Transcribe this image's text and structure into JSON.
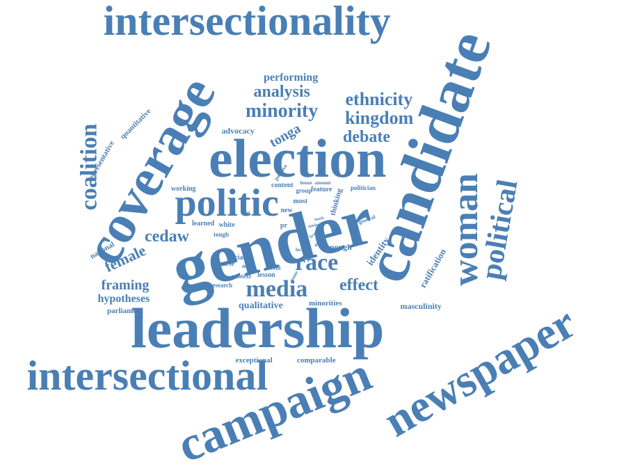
{
  "color": "#4a7fb5",
  "words": [
    {
      "id": "intersectionality",
      "text": "intersectionality"
    },
    {
      "id": "coverage",
      "text": "coverage"
    },
    {
      "id": "candidate",
      "text": "candidate"
    },
    {
      "id": "election",
      "text": "election"
    },
    {
      "id": "gender",
      "text": "gender"
    },
    {
      "id": "leadership",
      "text": "leadership"
    },
    {
      "id": "intersectional",
      "text": "intersectional"
    },
    {
      "id": "campaign",
      "text": "campaign"
    },
    {
      "id": "newspaper",
      "text": "newspaper"
    },
    {
      "id": "politic",
      "text": "politic"
    },
    {
      "id": "woman",
      "text": "woman"
    },
    {
      "id": "political",
      "text": "political"
    },
    {
      "id": "coalition",
      "text": "coalition"
    },
    {
      "id": "media",
      "text": "media"
    },
    {
      "id": "race",
      "text": "race"
    },
    {
      "id": "analysis",
      "text": "analysis"
    },
    {
      "id": "minority",
      "text": "minority"
    },
    {
      "id": "ethnicity",
      "text": "ethnicity"
    },
    {
      "id": "kingdom",
      "text": "kingdom"
    },
    {
      "id": "debate",
      "text": "debate"
    },
    {
      "id": "performing",
      "text": "performing"
    },
    {
      "id": "tonga",
      "text": "tonga"
    },
    {
      "id": "cedaw",
      "text": "cedaw"
    },
    {
      "id": "female",
      "text": "female"
    },
    {
      "id": "framing",
      "text": "framing"
    },
    {
      "id": "hypotheses",
      "text": "hypotheses"
    },
    {
      "id": "parliament",
      "text": "parliament"
    },
    {
      "id": "effect",
      "text": "effect"
    },
    {
      "id": "qualitative",
      "text": "qualitative"
    },
    {
      "id": "minorities",
      "text": "minorities"
    },
    {
      "id": "masculinity",
      "text": "masculinity"
    },
    {
      "id": "ratification",
      "text": "ratification"
    },
    {
      "id": "identity",
      "text": "identity"
    },
    {
      "id": "enough",
      "text": "enough"
    },
    {
      "id": "thinking",
      "text": "thinking"
    },
    {
      "id": "politician",
      "text": "politician"
    },
    {
      "id": "feature",
      "text": "feature"
    },
    {
      "id": "group",
      "text": "group"
    },
    {
      "id": "content",
      "text": "content"
    },
    {
      "id": "most",
      "text": "most"
    },
    {
      "id": "new",
      "text": "new"
    },
    {
      "id": "pr",
      "text": "pr"
    },
    {
      "id": "learned",
      "text": "learned"
    },
    {
      "id": "white",
      "text": "white"
    },
    {
      "id": "tough",
      "text": "tough"
    },
    {
      "id": "working",
      "text": "working"
    },
    {
      "id": "national",
      "text": "national"
    },
    {
      "id": "racial",
      "text": "racial"
    },
    {
      "id": "diverse",
      "text": "diverse"
    },
    {
      "id": "male",
      "text": "male"
    },
    {
      "id": "recent",
      "text": "recent"
    },
    {
      "id": "context",
      "text": "context"
    },
    {
      "id": "lesson",
      "text": "lesson"
    },
    {
      "id": "research",
      "text": "research"
    },
    {
      "id": "exceptional",
      "text": "exceptional"
    },
    {
      "id": "comparable",
      "text": "comparable"
    },
    {
      "id": "advocacy",
      "text": "advocacy"
    },
    {
      "id": "quantitative",
      "text": "quantitative"
    },
    {
      "id": "representative",
      "text": "representative"
    },
    {
      "id": "positive",
      "text": "positive"
    },
    {
      "id": "house",
      "text": "house"
    },
    {
      "id": "amount",
      "text": "amount"
    },
    {
      "id": "general",
      "text": "general"
    },
    {
      "id": "local",
      "text": "local"
    },
    {
      "id": "single",
      "text": "single"
    },
    {
      "id": "frame",
      "text": "frame"
    },
    {
      "id": "motion",
      "text": "motion"
    },
    {
      "id": "series",
      "text": "series"
    },
    {
      "id": "mark",
      "text": "mark"
    },
    {
      "id": "year",
      "text": "year"
    },
    {
      "id": "rule",
      "text": "rule"
    },
    {
      "id": "name",
      "text": "name"
    }
  ]
}
